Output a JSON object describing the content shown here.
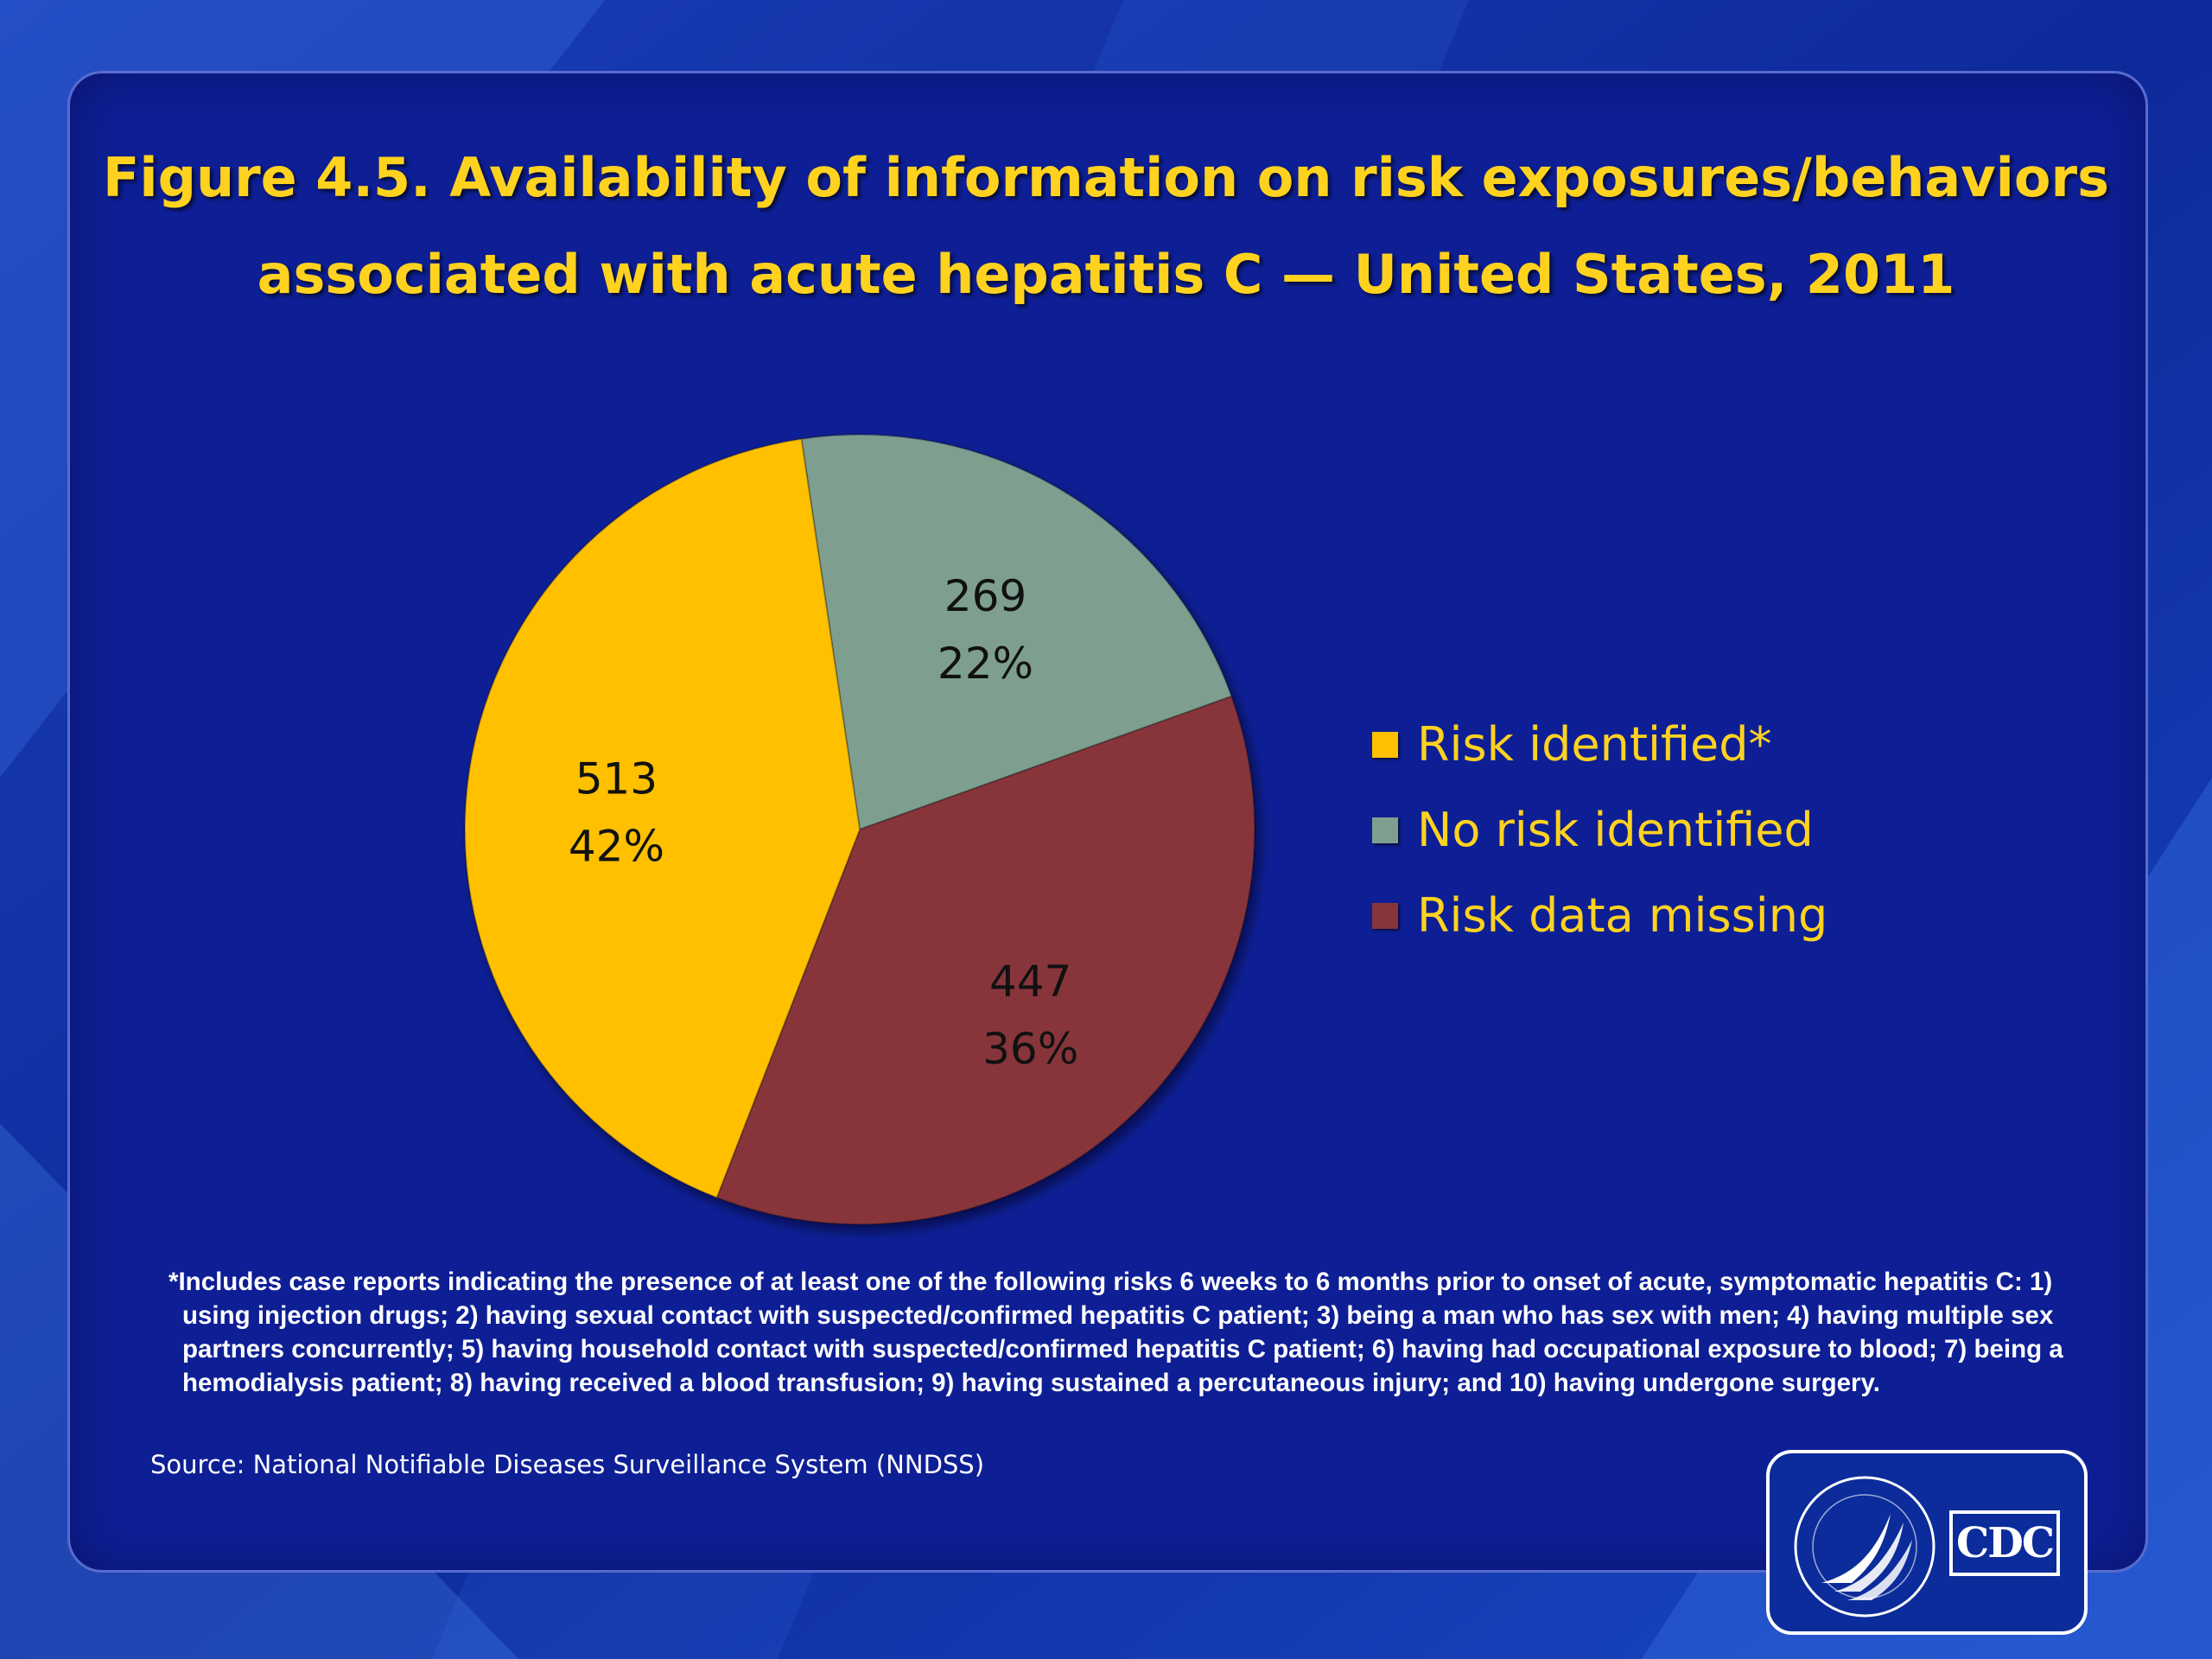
{
  "colors": {
    "accent_title": "#ffd21f",
    "risk_identified": "#ffc000",
    "no_risk_identified": "#7e9f8f",
    "risk_data_missing": "#87343a"
  },
  "chart_data": {
    "type": "pie",
    "title": "Figure 4.5. Availability of information on risk exposures/behaviors associated with acute hepatitis C — United States, 2011",
    "title_lines": [
      "Figure 4.5. Availability of information on risk exposures/behaviors",
      "associated with acute hepatitis C — United States, 2011"
    ],
    "legend_position": "right",
    "slices": [
      {
        "name": "No risk identified",
        "value": 269,
        "percent_label": "22%",
        "color": "#7e9f8f"
      },
      {
        "name": "Risk data missing",
        "value": 447,
        "percent_label": "36%",
        "color": "#87343a"
      },
      {
        "name": "Risk identified*",
        "value": 513,
        "percent_label": "42%",
        "color": "#ffc000"
      }
    ],
    "legend": [
      {
        "label": "Risk identified*",
        "color": "#ffc000"
      },
      {
        "label": "No risk identified",
        "color": "#7e9f8f"
      },
      {
        "label": "Risk data missing",
        "color": "#87343a"
      }
    ],
    "footnote": "*Includes case reports indicating the presence of at least one of the following risks 6 weeks to 6 months prior to onset of acute, symptomatic hepatitis C:  1) using injection drugs; 2) having sexual contact with suspected/confirmed hepatitis C patient; 3) being a man who has sex with men; 4) having multiple sex partners concurrently; 5) having household contact with suspected/confirmed hepatitis C patient; 6) having had occupational exposure to blood; 7) being a hemodialysis patient; 8) having received a blood transfusion; 9)  having sustained a percutaneous injury; and 10) having undergone surgery.",
    "source": "Source: National Notifiable Diseases Surveillance System (NNDSS)"
  },
  "logos": {
    "cdc": "CDC",
    "hhs_seal_icon": "hhs-eagle-seal-icon"
  }
}
